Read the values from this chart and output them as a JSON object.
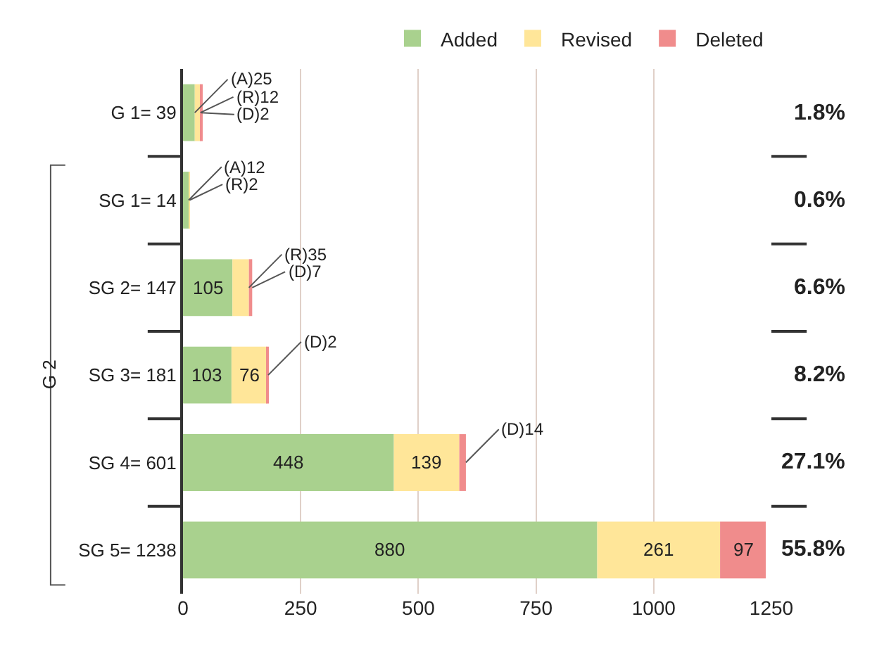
{
  "chart_data": {
    "type": "bar",
    "orientation": "horizontal",
    "stacked": true,
    "categories": [
      "G 1= 39",
      "SG 1= 14",
      "SG 2= 147",
      "SG 3= 181",
      "SG 4= 601",
      "SG 5= 1238"
    ],
    "series": [
      {
        "name": "Added",
        "color": "#a9d18e",
        "values": [
          25,
          12,
          105,
          103,
          448,
          880
        ],
        "value_labels": [
          "(A)25",
          "(A)12",
          "105",
          "103",
          "448",
          "880"
        ]
      },
      {
        "name": "Revised",
        "color": "#ffe699",
        "values": [
          12,
          2,
          35,
          76,
          139,
          261
        ],
        "value_labels": [
          "(R)12",
          "(R)2",
          "(R)35",
          "76",
          "139",
          "261"
        ]
      },
      {
        "name": "Deleted",
        "color": "#f08c8c",
        "values": [
          2,
          0,
          7,
          2,
          14,
          97
        ],
        "value_labels": [
          "(D)2",
          null,
          "(D)7",
          "(D)2",
          "(D)14",
          "97"
        ]
      }
    ],
    "xlim": [
      0,
      1250
    ],
    "xticks": [
      0,
      250,
      500,
      750,
      1000,
      1250
    ],
    "grid": "x",
    "legend": "top right",
    "annotations": [
      "1.8%",
      "0.6%",
      "6.6%",
      "8.2%",
      "27.1%",
      "55.8%",
      "G 2"
    ]
  }
}
